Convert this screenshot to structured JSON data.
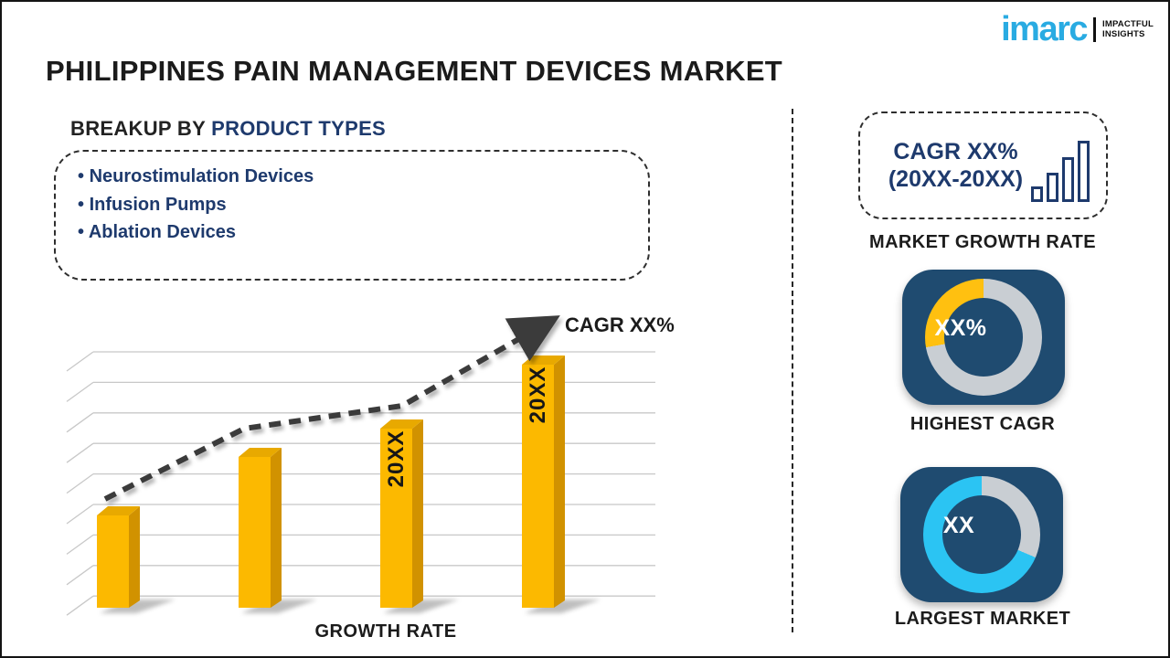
{
  "title": "PHILIPPINES PAIN MANAGEMENT DEVICES MARKET",
  "logo": {
    "brand": "imarc",
    "brand_color": "#29abe2",
    "tagline1": "IMPACTFUL",
    "tagline2": "INSIGHTS"
  },
  "breakup": {
    "heading_black": "BREAKUP BY",
    "heading_blue": "PRODUCT TYPES",
    "items": [
      "Neurostimulation Devices",
      "Infusion Pumps",
      "Ablation Devices"
    ]
  },
  "chart_data": {
    "type": "bar",
    "title": "",
    "xlabel": "GROWTH RATE",
    "ylabel": "",
    "categories": [
      "",
      "",
      "20XX",
      "20XX"
    ],
    "values_relative_pct": [
      36,
      59,
      70,
      95
    ],
    "axis_numbers_shown": false,
    "gridline_count": 9,
    "bar_color_front": "#fcb900",
    "bar_color_side": "#d19200",
    "bar_color_top": "#e8a900",
    "bar_label_color": "#171717",
    "trend_label": "CAGR XX%",
    "trend_style": "dashed-arrow",
    "trend_color": "#3b3b3b",
    "gridline_color": "#c8c8c8"
  },
  "right_panel": {
    "cagr_box": {
      "line1": "CAGR XX%",
      "line2": "(20XX-20XX)"
    },
    "market_growth_rate_label": "MARKET GROWTH RATE",
    "highest_cagr": {
      "value": "XX%",
      "label": "HIGHEST CAGR",
      "accent_color": "#ffc010",
      "accent_sweep_deg": 100,
      "ring_color": "#c9ced3",
      "card_color": "#1f4b70"
    },
    "largest_market": {
      "value": "XX",
      "label": "LARGEST MARKET",
      "accent_color": "#2bc4f3",
      "gray_sweep_deg": 113,
      "ring_color": "#c9ced3",
      "card_color": "#1f4b70"
    }
  },
  "colors": {
    "navy_text": "#1e3a6d",
    "dark_text": "#1c1c1c"
  }
}
